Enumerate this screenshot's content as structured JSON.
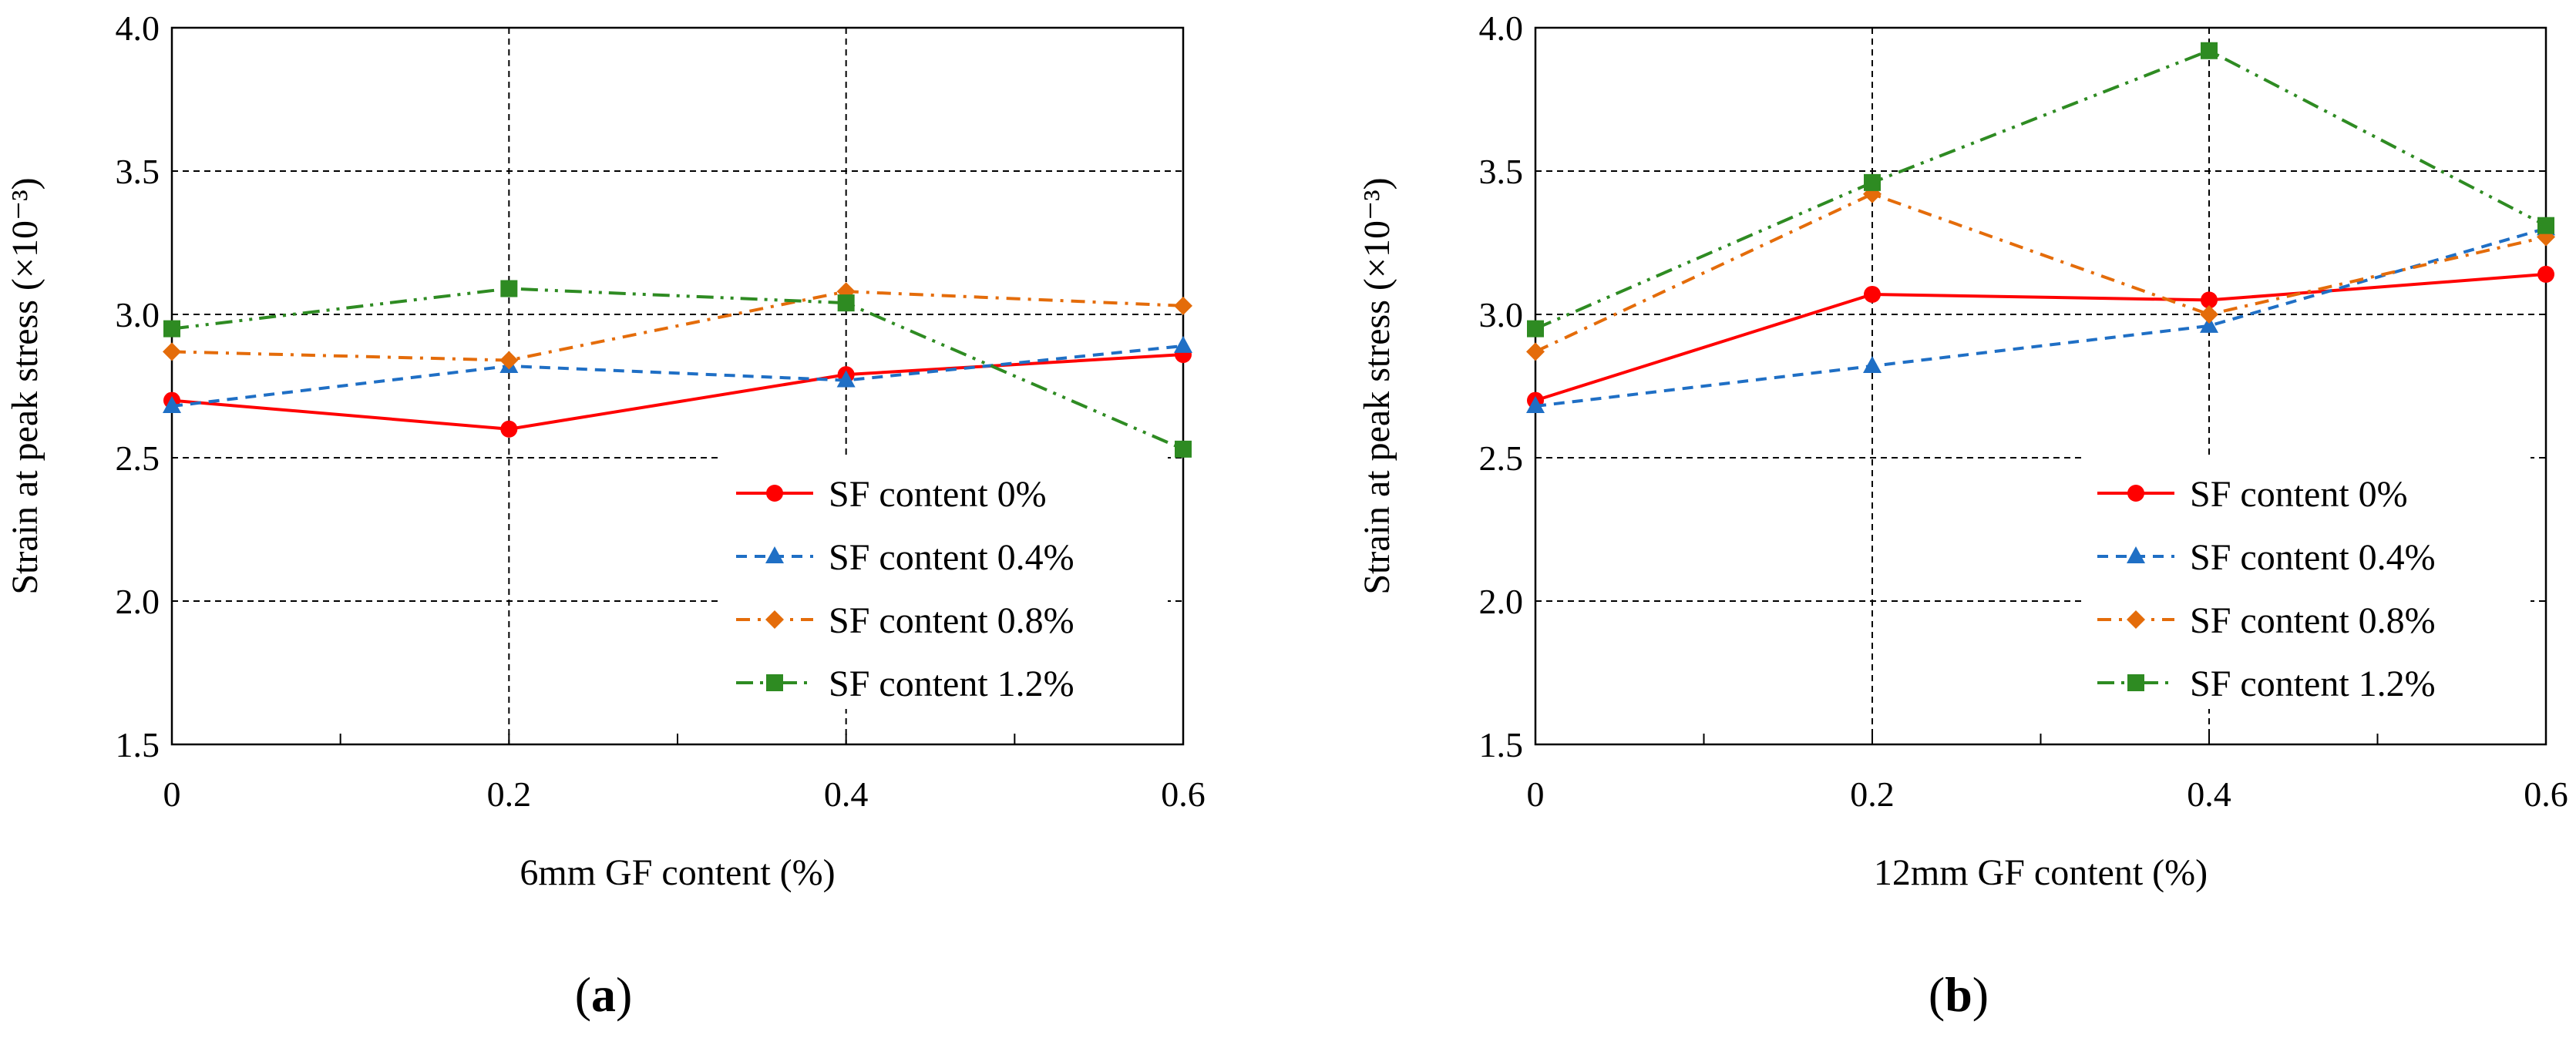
{
  "chart_data": [
    {
      "type": "line",
      "panel_label": "(a)",
      "panel_letter": "a",
      "xlabel": "6mm GF content (%)",
      "ylabel": "Strain at peak stress (×10⁻³)",
      "x": [
        0,
        0.2,
        0.4,
        0.6
      ],
      "x_tick_labels": [
        "0",
        "0.2",
        "0.4",
        "0.6"
      ],
      "y_tick_labels": [
        "1.5",
        "2.0",
        "2.5",
        "3.0",
        "3.5",
        "4.0"
      ],
      "y_ticks": [
        1.5,
        2.0,
        2.5,
        3.0,
        3.5,
        4.0
      ],
      "xlim": [
        0,
        0.6
      ],
      "ylim": [
        1.5,
        4.0
      ],
      "grid": true,
      "legend_position": "lower-right",
      "series": [
        {
          "name": "SF content 0%",
          "values": [
            2.7,
            2.6,
            2.79,
            2.86
          ],
          "color": "#ff0000",
          "marker": "circle",
          "dash": "solid"
        },
        {
          "name": "SF content 0.4%",
          "values": [
            2.68,
            2.82,
            2.77,
            2.89
          ],
          "color": "#1f6fc5",
          "marker": "triangle",
          "dash": "dashed"
        },
        {
          "name": "SF content 0.8%",
          "values": [
            2.87,
            2.84,
            3.08,
            3.03
          ],
          "color": "#e46c0a",
          "marker": "diamond",
          "dash": "dashdot"
        },
        {
          "name": "SF content 1.2%",
          "values": [
            2.95,
            3.09,
            3.04,
            2.53
          ],
          "color": "#2e8b22",
          "marker": "square",
          "dash": "dashdotdot"
        }
      ]
    },
    {
      "type": "line",
      "panel_label": "(b)",
      "panel_letter": "b",
      "xlabel": "12mm GF content (%)",
      "ylabel": "Strain at peak stress (×10⁻³)",
      "x": [
        0,
        0.2,
        0.4,
        0.6
      ],
      "x_tick_labels": [
        "0",
        "0.2",
        "0.4",
        "0.6"
      ],
      "y_tick_labels": [
        "1.5",
        "2.0",
        "2.5",
        "3.0",
        "3.5",
        "4.0"
      ],
      "y_ticks": [
        1.5,
        2.0,
        2.5,
        3.0,
        3.5,
        4.0
      ],
      "xlim": [
        0,
        0.6
      ],
      "ylim": [
        1.5,
        4.0
      ],
      "grid": true,
      "legend_position": "lower-right",
      "series": [
        {
          "name": "SF content 0%",
          "values": [
            2.7,
            3.07,
            3.05,
            3.14
          ],
          "color": "#ff0000",
          "marker": "circle",
          "dash": "solid"
        },
        {
          "name": "SF content 0.4%",
          "values": [
            2.68,
            2.82,
            2.96,
            3.3
          ],
          "color": "#1f6fc5",
          "marker": "triangle",
          "dash": "dashed"
        },
        {
          "name": "SF content 0.8%",
          "values": [
            2.87,
            3.42,
            3.0,
            3.27
          ],
          "color": "#e46c0a",
          "marker": "diamond",
          "dash": "dashdot"
        },
        {
          "name": "SF content 1.2%",
          "values": [
            2.95,
            3.46,
            3.92,
            3.31
          ],
          "color": "#2e8b22",
          "marker": "square",
          "dash": "dashdotdot"
        }
      ]
    }
  ]
}
